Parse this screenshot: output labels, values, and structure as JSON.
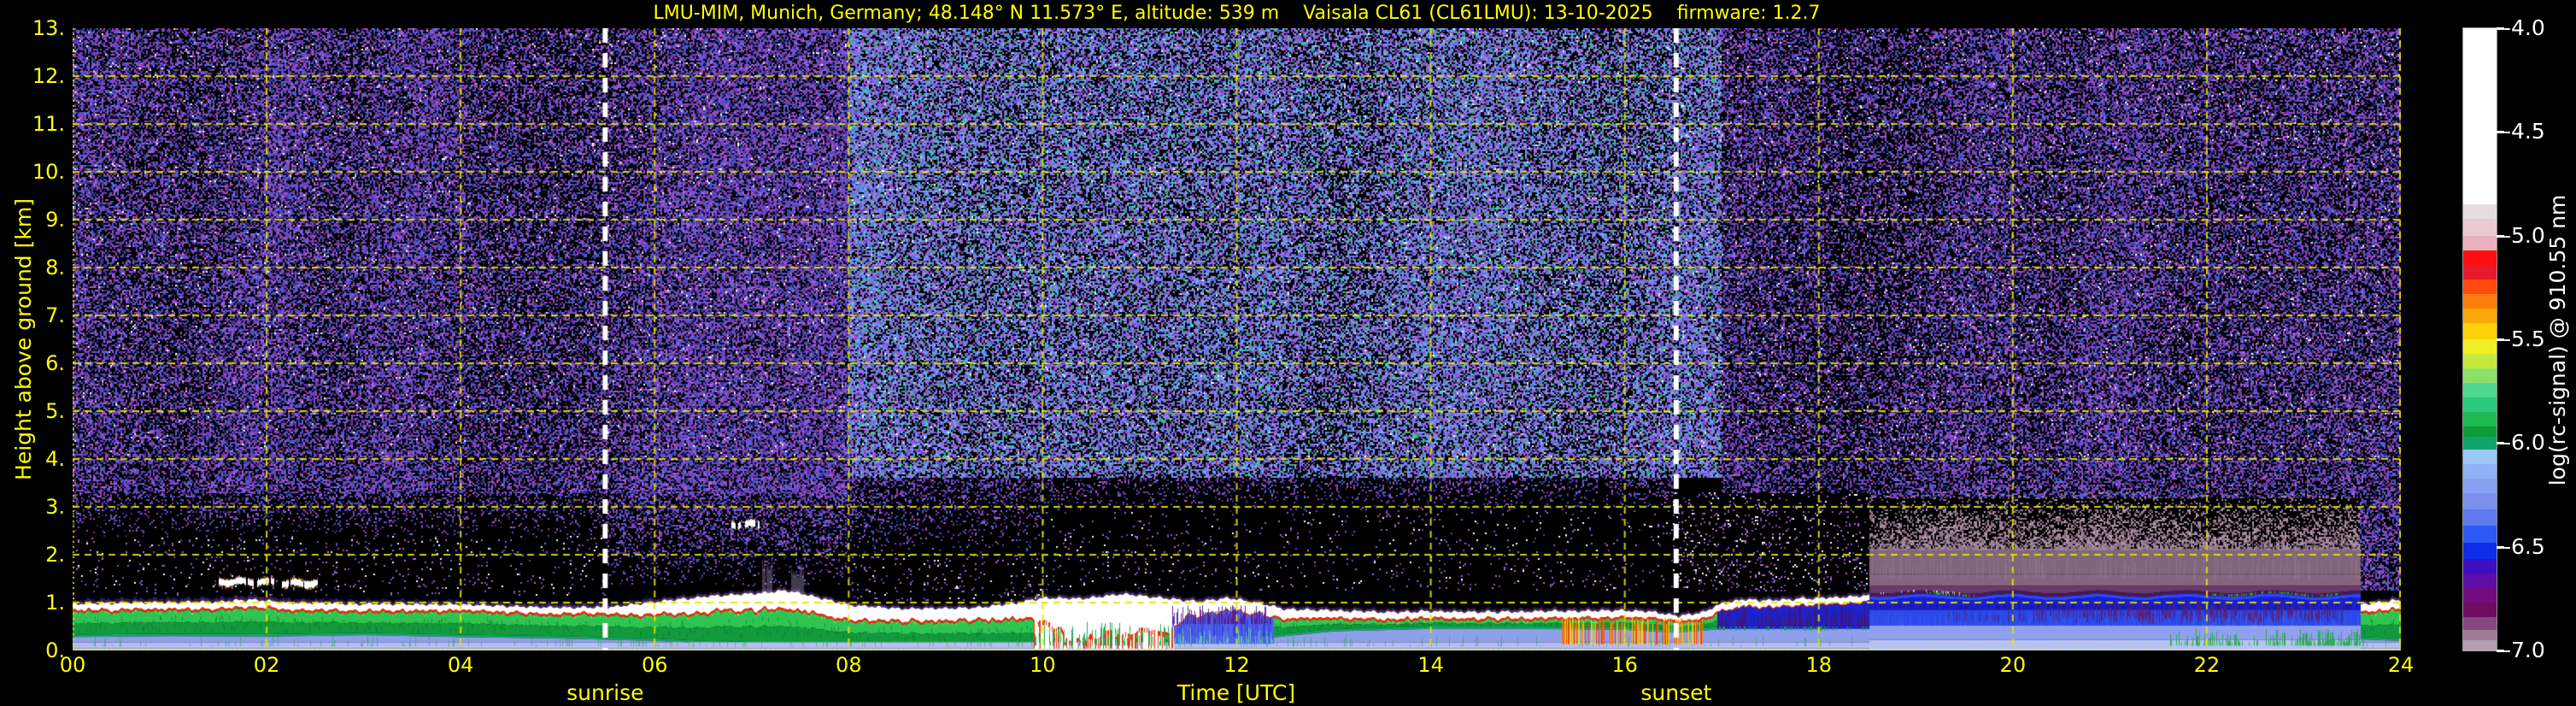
{
  "title": "LMU-MIM, Munich, Germany; 48.148° N 11.573° E, altitude: 539 m    Vaisala CL61 (CL61LMU): 13-10-2025    firmware: 1.2.7",
  "axes": {
    "x": {
      "label": "Time [UTC]",
      "min": 0,
      "max": 24,
      "ticks": [
        {
          "v": 0,
          "label": "00"
        },
        {
          "v": 2,
          "label": "02"
        },
        {
          "v": 4,
          "label": "04"
        },
        {
          "v": 6,
          "label": "06"
        },
        {
          "v": 8,
          "label": "08"
        },
        {
          "v": 10,
          "label": "10"
        },
        {
          "v": 12,
          "label": "12"
        },
        {
          "v": 14,
          "label": "14"
        },
        {
          "v": 16,
          "label": "16"
        },
        {
          "v": 18,
          "label": "18"
        },
        {
          "v": 20,
          "label": "20"
        },
        {
          "v": 22,
          "label": "22"
        },
        {
          "v": 24,
          "label": "24"
        }
      ]
    },
    "y": {
      "label": "Height above ground [km]",
      "min": 0,
      "max": 13,
      "ticks": [
        {
          "v": 0,
          "label": "0."
        },
        {
          "v": 1,
          "label": "1."
        },
        {
          "v": 2,
          "label": "2."
        },
        {
          "v": 3,
          "label": "3."
        },
        {
          "v": 4,
          "label": "4."
        },
        {
          "v": 5,
          "label": "5."
        },
        {
          "v": 6,
          "label": "6."
        },
        {
          "v": 7,
          "label": "7."
        },
        {
          "v": 8,
          "label": "8."
        },
        {
          "v": 9,
          "label": "9."
        },
        {
          "v": 10,
          "label": "10."
        },
        {
          "v": 11,
          "label": "11."
        },
        {
          "v": 12,
          "label": "12."
        },
        {
          "v": 13,
          "label": "13."
        }
      ]
    }
  },
  "annotations": {
    "sunrise": {
      "label": "sunrise",
      "time_utc": 5.49
    },
    "sunset": {
      "label": "sunset",
      "time_utc": 16.53
    }
  },
  "colorbar": {
    "label": "log(rc-signal) @ 910.55 nm",
    "min": -7.0,
    "max": -4.0,
    "ticks": [
      {
        "v": -4.0,
        "label": "-4.0"
      },
      {
        "v": -4.5,
        "label": "-4.5"
      },
      {
        "v": -5.0,
        "label": "-5.0"
      },
      {
        "v": -5.5,
        "label": "-5.5"
      },
      {
        "v": -6.0,
        "label": "-6.0"
      },
      {
        "v": -6.5,
        "label": "-6.5"
      },
      {
        "v": -7.0,
        "label": "-7.0"
      }
    ],
    "bands": [
      {
        "hi": -4.0,
        "lo": -4.85,
        "c": "#ffffff"
      },
      {
        "hi": -4.85,
        "lo": -4.92,
        "c": "#e8dce3"
      },
      {
        "hi": -4.92,
        "lo": -5.0,
        "c": "#e9c9d2"
      },
      {
        "hi": -5.0,
        "lo": -5.07,
        "c": "#eab0bd"
      },
      {
        "hi": -5.07,
        "lo": -5.14,
        "c": "#fb0f0f"
      },
      {
        "hi": -5.14,
        "lo": -5.21,
        "c": "#e8192b"
      },
      {
        "hi": -5.21,
        "lo": -5.28,
        "c": "#fd4a0d"
      },
      {
        "hi": -5.28,
        "lo": -5.35,
        "c": "#fd7d0b"
      },
      {
        "hi": -5.35,
        "lo": -5.42,
        "c": "#fda80a"
      },
      {
        "hi": -5.42,
        "lo": -5.5,
        "c": "#fdd20a"
      },
      {
        "hi": -5.5,
        "lo": -5.57,
        "c": "#f2ee26"
      },
      {
        "hi": -5.57,
        "lo": -5.64,
        "c": "#c6e83c"
      },
      {
        "hi": -5.64,
        "lo": -5.71,
        "c": "#8ce06a"
      },
      {
        "hi": -5.71,
        "lo": -5.78,
        "c": "#50d890"
      },
      {
        "hi": -5.78,
        "lo": -5.85,
        "c": "#2cc87c"
      },
      {
        "hi": -5.85,
        "lo": -5.92,
        "c": "#1eb852"
      },
      {
        "hi": -5.92,
        "lo": -5.97,
        "c": "#0d9c35"
      },
      {
        "hi": -5.97,
        "lo": -6.03,
        "c": "#12a36b"
      },
      {
        "hi": -6.03,
        "lo": -6.1,
        "c": "#9cc8fa"
      },
      {
        "hi": -6.1,
        "lo": -6.17,
        "c": "#8fb2f6"
      },
      {
        "hi": -6.17,
        "lo": -6.24,
        "c": "#88a2f2"
      },
      {
        "hi": -6.24,
        "lo": -6.32,
        "c": "#7e90ee"
      },
      {
        "hi": -6.32,
        "lo": -6.4,
        "c": "#5f7af0"
      },
      {
        "hi": -6.4,
        "lo": -6.48,
        "c": "#2e58f5"
      },
      {
        "hi": -6.48,
        "lo": -6.56,
        "c": "#0d2de8"
      },
      {
        "hi": -6.56,
        "lo": -6.63,
        "c": "#3a10c2"
      },
      {
        "hi": -6.63,
        "lo": -6.7,
        "c": "#5c0da8"
      },
      {
        "hi": -6.7,
        "lo": -6.77,
        "c": "#730b80"
      },
      {
        "hi": -6.77,
        "lo": -6.84,
        "c": "#6e0d60"
      },
      {
        "hi": -6.84,
        "lo": -6.9,
        "c": "#85487f"
      },
      {
        "hi": -6.9,
        "lo": -6.95,
        "c": "#9d7b99"
      },
      {
        "hi": -6.95,
        "lo": -7.0,
        "c": "#b2a0b1"
      }
    ]
  },
  "colors": {
    "background": "#000000",
    "axis_text": "#ffff00",
    "grid": "#e6e600",
    "colorbar_text": "#ffffff",
    "sun_line": "#ffffff"
  },
  "chart_data": {
    "type": "heatmap",
    "title": "LMU-MIM, Munich, Germany; 48.148° N 11.573° E, altitude: 539 m    Vaisala CL61 (CL61LMU): 13-10-2025    firmware: 1.2.7",
    "xlabel": "Time [UTC]",
    "ylabel": "Height above ground [km]",
    "xlim": [
      0,
      24
    ],
    "ylim": [
      0,
      13
    ],
    "colorbar_label": "log(rc-signal) @ 910.55 nm",
    "colorbar_lim": [
      -7.0,
      -4.0
    ],
    "grid": "yellow dashed, 2 h × 1 km",
    "annotations": [
      {
        "label": "sunrise",
        "time_utc": 5.49
      },
      {
        "label": "sunset",
        "time_utc": 16.53
      }
    ],
    "description": "Ceilometer attenuated-backscatter quicklook. Strong white aerosol/residual-layer top near 1 km all day; green mixed layer and periwinkle weak-signal layer below; speckled instrument noise (purple/blue) above ~3 km, brighter during daylight 08-17 UTC; shallow cloud streaks at 1.4 km ~01:30-02:30 and 2.6 km ~06:50; drizzle/precipitation shafts to the ground 09:55-11:20; yellow-red virga streaks 15:25-16:45; elevated grey-magenta attenuation/fog block 18:30-23:35 between ~1.1 and 2.1 km with blue layers beneath; white layer returns with green below after 23:35.",
    "boundary_layer_top_km": [
      [
        0,
        0.98
      ],
      [
        0.7,
        1.0
      ],
      [
        1.5,
        1.02
      ],
      [
        1.85,
        1.06
      ],
      [
        2.2,
        1.0
      ],
      [
        3,
        0.97
      ],
      [
        4,
        0.96
      ],
      [
        4.8,
        0.9
      ],
      [
        5.5,
        0.9
      ],
      [
        6,
        1.02
      ],
      [
        6.6,
        1.14
      ],
      [
        7,
        1.18
      ],
      [
        7.35,
        1.26
      ],
      [
        7.7,
        1.1
      ],
      [
        8,
        0.94
      ],
      [
        8.6,
        0.87
      ],
      [
        9.2,
        0.88
      ],
      [
        9.7,
        0.98
      ],
      [
        10,
        1.1
      ],
      [
        10.4,
        1.08
      ],
      [
        10.8,
        1.18
      ],
      [
        11.2,
        1.1
      ],
      [
        11.6,
        1.02
      ],
      [
        11.9,
        1.1
      ],
      [
        12.2,
        1.0
      ],
      [
        12.5,
        0.86
      ],
      [
        13,
        0.84
      ],
      [
        13.5,
        0.8
      ],
      [
        14,
        0.82
      ],
      [
        14.5,
        0.8
      ],
      [
        15,
        0.81
      ],
      [
        15.5,
        0.83
      ],
      [
        16,
        0.84
      ],
      [
        16.3,
        0.8
      ],
      [
        16.55,
        0.72
      ],
      [
        16.8,
        0.8
      ],
      [
        17,
        0.98
      ],
      [
        17.2,
        1.06
      ],
      [
        17.5,
        1.04
      ],
      [
        17.8,
        1.08
      ],
      [
        18.1,
        1.1
      ],
      [
        18.5,
        1.14
      ],
      [
        23.58,
        0.95
      ],
      [
        23.75,
        1.0
      ],
      [
        23.9,
        1.05
      ],
      [
        24,
        1.02
      ]
    ],
    "white_layer_thickness_km": [
      [
        0,
        0.13
      ],
      [
        2,
        0.14
      ],
      [
        4,
        0.12
      ],
      [
        5.5,
        0.12
      ],
      [
        6,
        0.25
      ],
      [
        6.6,
        0.3
      ],
      [
        7,
        0.33
      ],
      [
        7.5,
        0.35
      ],
      [
        8,
        0.28
      ],
      [
        8.6,
        0.24
      ],
      [
        9.2,
        0.24
      ],
      [
        9.7,
        0.3
      ],
      [
        10,
        0.45
      ],
      [
        10.3,
        0.8
      ],
      [
        11.3,
        0.7
      ],
      [
        11.5,
        0.28
      ],
      [
        12,
        0.25
      ],
      [
        12.5,
        0.18
      ],
      [
        13,
        0.14
      ],
      [
        14,
        0.13
      ],
      [
        15,
        0.13
      ],
      [
        16,
        0.14
      ],
      [
        16.55,
        0.1
      ],
      [
        17,
        0.14
      ],
      [
        17.5,
        0.13
      ],
      [
        18.5,
        0.12
      ],
      [
        23.58,
        0.14
      ],
      [
        24,
        0.18
      ]
    ],
    "green_layer_bottom_km": [
      [
        0,
        0.33
      ],
      [
        1,
        0.35
      ],
      [
        2,
        0.34
      ],
      [
        3,
        0.37
      ],
      [
        4,
        0.33
      ],
      [
        5,
        0.3
      ],
      [
        6,
        0.25
      ],
      [
        6.5,
        0.2
      ],
      [
        7,
        0.18
      ],
      [
        8,
        0.15
      ],
      [
        9,
        0.12
      ],
      [
        9.7,
        0.1
      ],
      [
        11.5,
        0.12
      ],
      [
        12,
        0.2
      ],
      [
        12.5,
        0.35
      ],
      [
        13,
        0.45
      ],
      [
        14,
        0.5
      ],
      [
        15,
        0.5
      ],
      [
        16,
        0.48
      ],
      [
        16.55,
        0.42
      ],
      [
        17,
        0.5
      ],
      [
        17.5,
        0.55
      ],
      [
        18.5,
        0.6
      ],
      [
        23.58,
        0.28
      ],
      [
        24,
        0.25
      ]
    ],
    "attenuation_block": {
      "t0": 18.52,
      "t1": 23.58,
      "fog_top_km": 2.1,
      "fog_fade_top_km": 3.2,
      "bottom_edge_km": 1.17,
      "fog_color": "#9b7d95",
      "edge_color": "#471a50"
    },
    "clouds": [
      {
        "t0": 1.5,
        "t1": 2.07,
        "height_km": 1.43,
        "fringe": "#ff5500"
      },
      {
        "t0": 2.15,
        "t1": 2.52,
        "height_km": 1.4,
        "fringe": "#ff7700"
      },
      {
        "t0": 6.78,
        "t1": 7.08,
        "height_km": 2.63,
        "fringe": "#ff8800"
      }
    ],
    "plumes": [
      {
        "t0": 7.1,
        "t1": 7.22,
        "top_km": 1.92
      },
      {
        "t0": 7.4,
        "t1": 7.54,
        "top_km": 1.82
      }
    ],
    "events": {
      "precip": {
        "t0": 9.9,
        "t1": 11.35
      },
      "virga": {
        "t0": 15.35,
        "t1": 16.8
      },
      "blue_purple_zone": {
        "t0": 11.33,
        "t1": 12.38
      },
      "dark_blue_zone": {
        "t0": 16.95,
        "t1": 18.52
      },
      "green_patches": {
        "t0": 21.6,
        "t1": 24.0
      }
    },
    "palettes": {
      "night": [
        "#6a3aa6",
        "#8448c0",
        "#5a4cd4",
        "#4256cc",
        "#9a4cc4",
        "#37307f",
        "#b066d6",
        "#4a66dd",
        "#8a3ab0",
        "#2e2a70"
      ],
      "day": [
        "#6a5cd6",
        "#7a6ce4",
        "#5578ee",
        "#8a64cc",
        "#9a76ec",
        "#64a8fa",
        "#46c8dc",
        "#35b868",
        "#a868e0",
        "#8496fa",
        "#6a3aa6",
        "#9a4cc4"
      ],
      "sparse": [
        "#8a55b8",
        "#9a66c8",
        "#ffffff",
        "#6a44a6",
        "#b070d0"
      ],
      "grey": [
        "#9c7f96",
        "#8d6b85",
        "#a98fa2",
        "#7d5f77",
        "#b09ab0"
      ],
      "white": [
        "#ffffff",
        "#e8d8e8"
      ]
    },
    "noise_zones": [
      {
        "t0": 0,
        "t1": 8,
        "k0": 3.3,
        "k1": 13,
        "d": 0.6,
        "p": "night"
      },
      {
        "t0": 8,
        "t1": 17,
        "k0": 3.6,
        "k1": 13,
        "d": 0.66,
        "p": "day"
      },
      {
        "t0": 17,
        "t1": 18.52,
        "k0": 3.3,
        "k1": 13,
        "d": 0.52,
        "p": "night"
      },
      {
        "t0": 18.52,
        "t1": 23.58,
        "k0": 3.2,
        "k1": 13,
        "d": 0.52,
        "p": "night"
      },
      {
        "t0": 23.58,
        "t1": 24,
        "k0": 1.25,
        "k1": 13,
        "d": 0.5,
        "p": "night"
      },
      {
        "t0": 0,
        "t1": 5.5,
        "k0": 2.4,
        "k1": 3.3,
        "d": 0.22,
        "p": "night",
        "fade": "top"
      },
      {
        "t0": 0,
        "t1": 5.5,
        "k0": 1.15,
        "k1": 2.4,
        "d": 0.05,
        "p": "sparse"
      },
      {
        "t0": 5.5,
        "t1": 8,
        "k0": 1.35,
        "k1": 3.3,
        "d": 0.26,
        "p": "night",
        "fade": "top"
      },
      {
        "t0": 8,
        "t1": 10,
        "k0": 2.0,
        "k1": 3.6,
        "d": 0.22,
        "p": "night",
        "fade": "top"
      },
      {
        "t0": 8,
        "t1": 10,
        "k0": 1.05,
        "k1": 2.0,
        "d": 0.07,
        "p": "sparse"
      },
      {
        "t0": 10,
        "t1": 16.5,
        "k0": 2.9,
        "k1": 3.6,
        "d": 0.16,
        "p": "night",
        "fade": "top"
      },
      {
        "t0": 10,
        "t1": 16.5,
        "k0": 1.25,
        "k1": 2.9,
        "d": 0.04,
        "p": "sparse"
      },
      {
        "t0": 16.5,
        "t1": 18.52,
        "k0": 1.25,
        "k1": 3.3,
        "d": 0.1,
        "p": "sparse"
      },
      {
        "t0": 18.52,
        "t1": 23.58,
        "k0": 2.1,
        "k1": 3.3,
        "d": 0.38,
        "p": "grey",
        "fade": "bottom"
      },
      {
        "t0": 0,
        "t1": 24,
        "k0": 4,
        "k1": 13,
        "d": 0.012,
        "p": "white"
      }
    ]
  }
}
